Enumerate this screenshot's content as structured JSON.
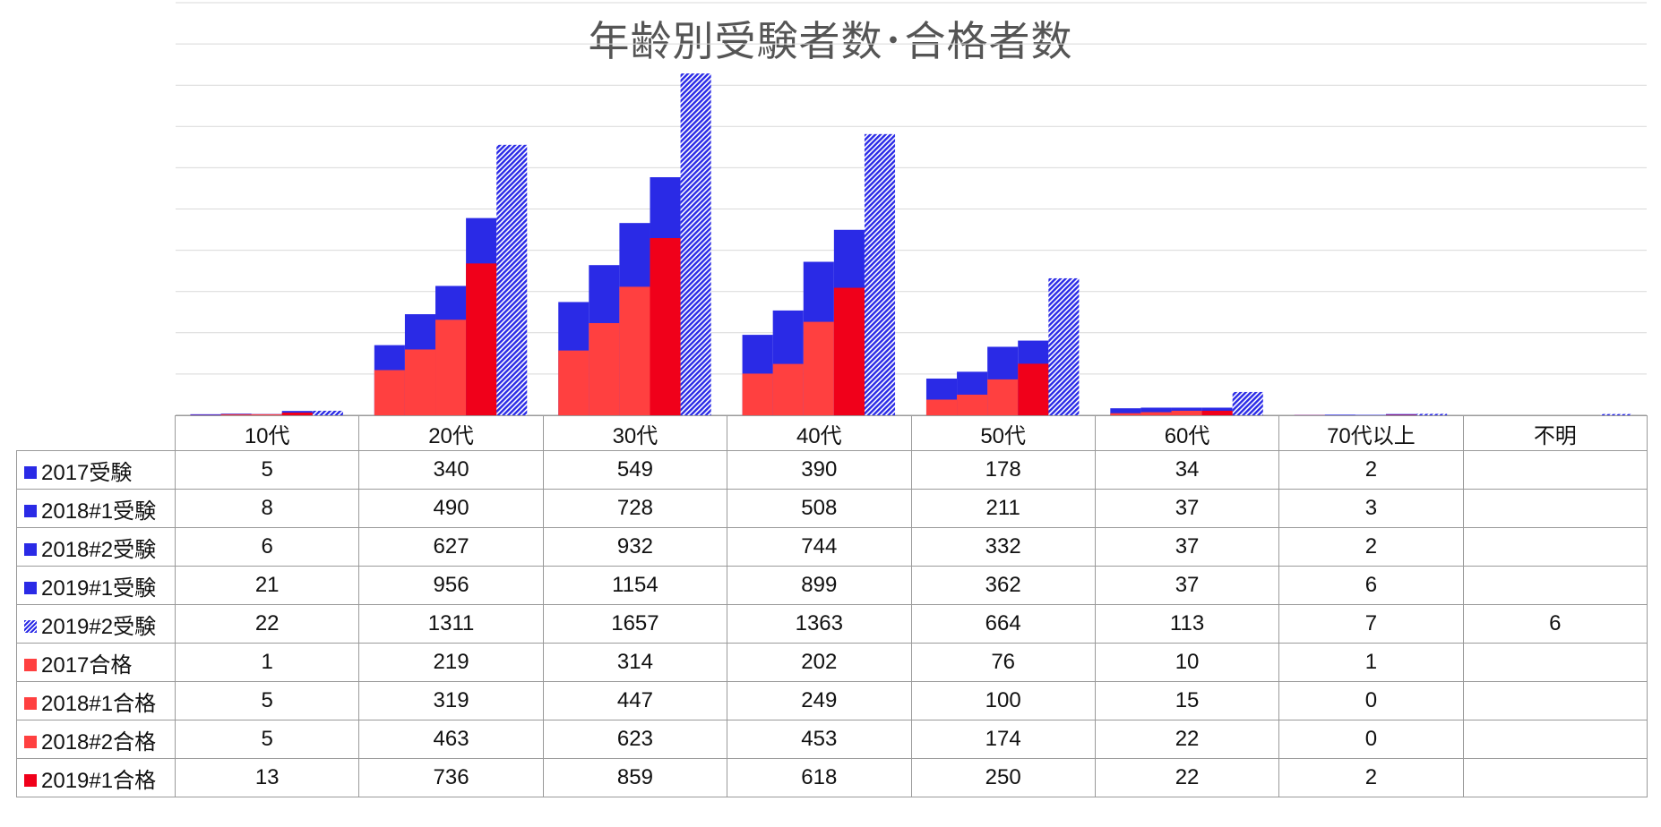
{
  "chart_data": {
    "type": "bar",
    "title": "年齢別受験者数･合格者数",
    "xlabel": "",
    "ylabel": "",
    "ylim": [
      0,
      2000
    ],
    "grid": true,
    "legend": "table-left",
    "categories": [
      "10代",
      "20代",
      "30代",
      "40代",
      "50代",
      "60代",
      "70代以上",
      "不明"
    ],
    "series": [
      {
        "name": "2017受験",
        "kind": "exam",
        "color": "#2a2ae6",
        "pattern": "solid",
        "values": [
          5,
          340,
          549,
          390,
          178,
          34,
          2,
          null
        ]
      },
      {
        "name": "2018#1受験",
        "kind": "exam",
        "color": "#2a2ae6",
        "pattern": "solid",
        "values": [
          8,
          490,
          728,
          508,
          211,
          37,
          3,
          null
        ]
      },
      {
        "name": "2018#2受験",
        "kind": "exam",
        "color": "#2a2ae6",
        "pattern": "solid",
        "values": [
          6,
          627,
          932,
          744,
          332,
          37,
          2,
          null
        ]
      },
      {
        "name": "2019#1受験",
        "kind": "exam",
        "color": "#2a2ae6",
        "pattern": "solid",
        "values": [
          21,
          956,
          1154,
          899,
          362,
          37,
          6,
          null
        ]
      },
      {
        "name": "2019#2受験",
        "kind": "exam",
        "color": "#2a2ae6",
        "pattern": "hatched",
        "values": [
          22,
          1311,
          1657,
          1363,
          664,
          113,
          7,
          6
        ]
      },
      {
        "name": "2017合格",
        "kind": "pass",
        "color": "#ff4040",
        "pattern": "solid",
        "values": [
          1,
          219,
          314,
          202,
          76,
          10,
          1,
          null
        ]
      },
      {
        "name": "2018#1合格",
        "kind": "pass",
        "color": "#ff4040",
        "pattern": "solid",
        "values": [
          5,
          319,
          447,
          249,
          100,
          15,
          0,
          null
        ]
      },
      {
        "name": "2018#2合格",
        "kind": "pass",
        "color": "#ff4040",
        "pattern": "solid",
        "values": [
          5,
          463,
          623,
          453,
          174,
          22,
          0,
          null
        ]
      },
      {
        "name": "2019#1合格",
        "kind": "pass",
        "color": "#f0001a",
        "pattern": "solid",
        "values": [
          13,
          736,
          859,
          618,
          250,
          22,
          2,
          null
        ]
      }
    ]
  }
}
